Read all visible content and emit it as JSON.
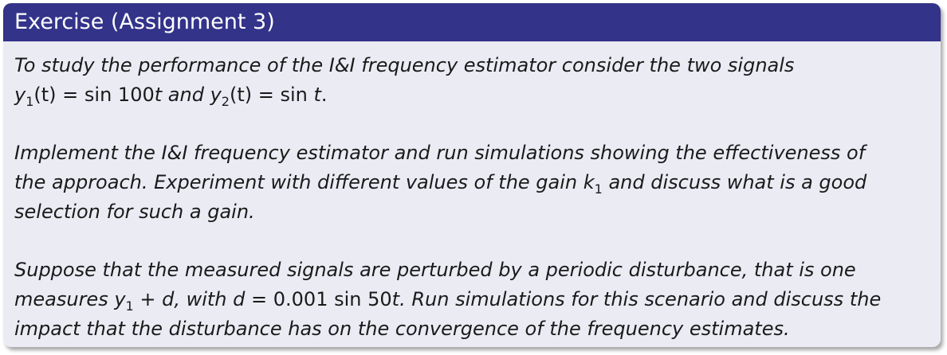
{
  "block": {
    "title": "Exercise (Assignment 3)"
  },
  "paragraphs": [
    {
      "l1": "To study the performance of the I&I frequency estimator consider the two signals",
      "l2": {
        "a_var": "y",
        "a_sub": "1",
        "a_arg": "(t) = ",
        "a_fn": "sin 100",
        "a_t": "t",
        "and": " and ",
        "b_var": "y",
        "b_sub": "2",
        "b_arg": "(t) = ",
        "b_fn": "sin ",
        "b_t": "t",
        "end": "."
      }
    },
    {
      "l1": "Implement the I&I frequency estimator and run simulations showing the effectiveness of",
      "l2a": "the approach. Experiment with different values of the gain ",
      "k": "k",
      "k_sub": "1",
      "l2b": " and discuss what is a good",
      "l3": "selection for such a gain."
    },
    {
      "l1": "Suppose that the measured signals are perturbed by a periodic disturbance, that is one",
      "l2a": "measures ",
      "y": "y",
      "y_sub": "1",
      "plus": " + ",
      "d": "d",
      "l2b": ", with ",
      "d2": "d",
      "eq": " = ",
      "val": "0.001 sin 50",
      "t": "t",
      "l2c": ". Run simulations for this scenario and discuss the",
      "l3": "impact that the disturbance has on the convergence of the frequency estimates."
    }
  ]
}
